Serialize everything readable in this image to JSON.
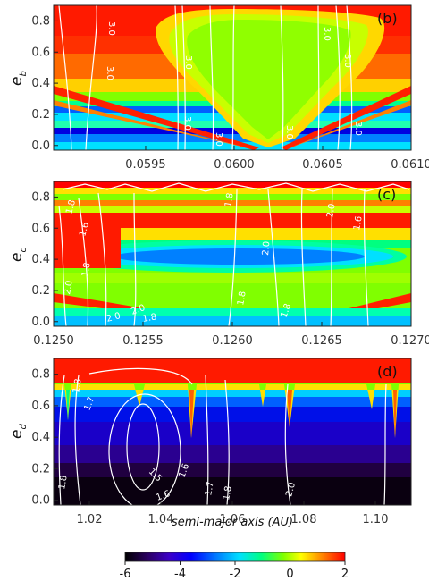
{
  "chart_data": [
    {
      "type": "heatmap",
      "panel_label": "(b)",
      "ylabel": "e",
      "ylabel_sub": "b",
      "xticks": [
        0.0595,
        0.06,
        0.0605,
        0.061
      ],
      "xtick_labels": [
        "0.0595",
        "0.0600",
        "0.0605",
        "0.0610"
      ],
      "yticks": [
        0.0,
        0.2,
        0.4,
        0.6,
        0.8
      ],
      "ytick_labels": [
        "0.0",
        "0.2",
        "0.4",
        "0.6",
        "0.8"
      ],
      "xlim": [
        0.05898,
        0.061
      ],
      "ylim": [
        -0.03,
        0.9
      ],
      "contour_labels": [
        "3.0",
        "3.0",
        "3.0",
        "3.0",
        "3.0",
        "3.0",
        "3.0",
        "3.0",
        "3.0"
      ]
    },
    {
      "type": "heatmap",
      "panel_label": "(c)",
      "ylabel": "e",
      "ylabel_sub": "c",
      "xticks": [
        0.125,
        0.1255,
        0.126,
        0.1265,
        0.127
      ],
      "xtick_labels": [
        "0.1250",
        "0.1255",
        "0.1260",
        "0.1265",
        "0.1270"
      ],
      "yticks": [
        0.0,
        0.2,
        0.4,
        0.6,
        0.8
      ],
      "ytick_labels": [
        "0.0",
        "0.2",
        "0.4",
        "0.6",
        "0.8"
      ],
      "xlim": [
        0.125,
        0.127
      ],
      "ylim": [
        -0.03,
        0.9
      ],
      "contour_labels": [
        "1.8",
        "1.6",
        "2.0",
        "1.8",
        "2.0",
        "1.8",
        "1.8",
        "2.0",
        "1.8",
        "2.0",
        "1.6",
        "2.0",
        "1.8"
      ]
    },
    {
      "type": "heatmap",
      "panel_label": "(d)",
      "ylabel": "e",
      "ylabel_sub": "d",
      "xlabel": "semi-major axis (AU)",
      "xticks": [
        1.02,
        1.04,
        1.06,
        1.08,
        1.1
      ],
      "xtick_labels": [
        "1.02",
        "1.04",
        "1.06",
        "1.08",
        "1.10"
      ],
      "yticks": [
        0.0,
        0.2,
        0.4,
        0.6,
        0.8
      ],
      "ytick_labels": [
        "0.0",
        "0.2",
        "0.4",
        "0.6",
        "0.8"
      ],
      "xlim": [
        1.01,
        1.11
      ],
      "ylim": [
        -0.03,
        0.9
      ],
      "contour_labels": [
        "1.8",
        "1.7",
        "1.6",
        "1.5",
        "1.6",
        "1.7",
        "1.8",
        "2.0",
        "1.8"
      ]
    }
  ],
  "colorbar": {
    "ticks": [
      -6,
      -4,
      -2,
      0,
      2
    ],
    "tick_labels": [
      "-6",
      "-4",
      "-2",
      "0",
      "2"
    ],
    "range": [
      -6,
      2
    ],
    "colors": [
      "#000000",
      "#2a0060",
      "#3c00c8",
      "#0000ff",
      "#0080ff",
      "#00e0ff",
      "#00ff80",
      "#80ff00",
      "#ffff00",
      "#ff8000",
      "#ff0000"
    ]
  }
}
